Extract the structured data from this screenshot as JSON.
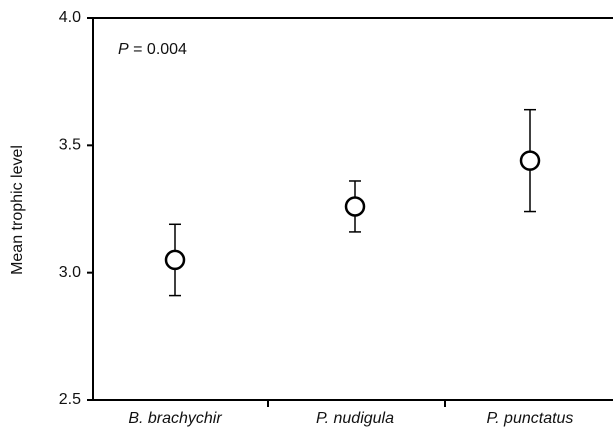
{
  "chart_data": {
    "type": "errorpoint",
    "y_label": "Mean trophic level",
    "annotation_var": "P",
    "annotation_text": "= 0.004",
    "categories": [
      "B. brachychir",
      "P. nudigula",
      "P. punctatus"
    ],
    "values": [
      3.05,
      3.26,
      3.44
    ],
    "errors": [
      0.14,
      0.1,
      0.2
    ],
    "color": "#000000",
    "ylim": [
      2.5,
      4.0
    ],
    "yticks": [
      2.5,
      {
        "value": 3,
        "label": "3.0"
      },
      3.5,
      {
        "value": 4,
        "label": "4.0"
      }
    ]
  }
}
